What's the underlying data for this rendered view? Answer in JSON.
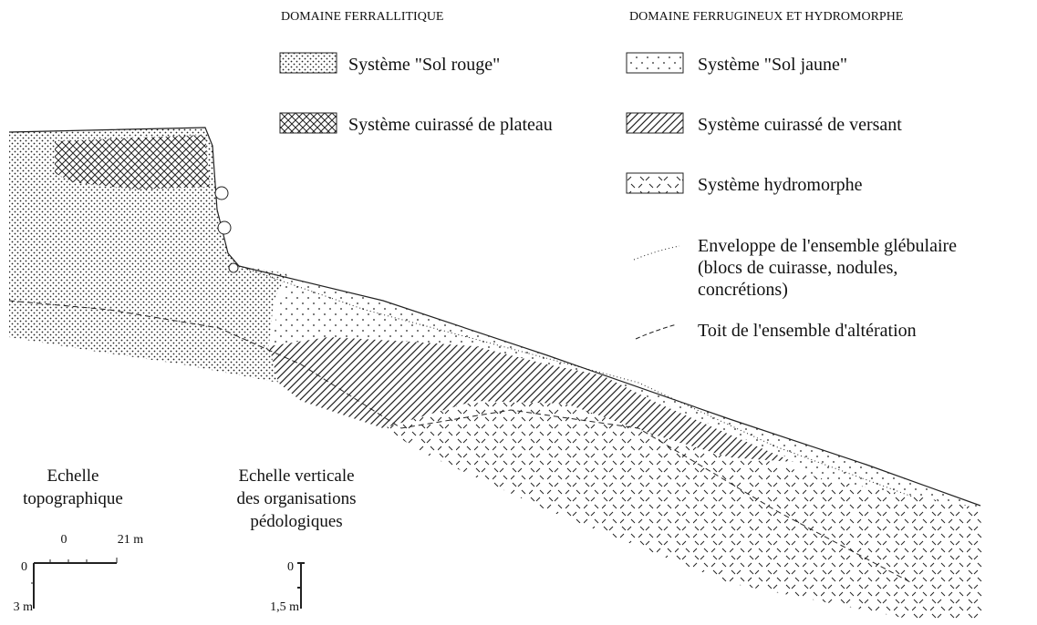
{
  "legend_groups": [
    {
      "title": "DOMAINE FERRALLITIQUE",
      "items": [
        "Système \"Sol rouge\"",
        "Système cuirassé de plateau"
      ]
    },
    {
      "title": "DOMAINE FERRUGINEUX ET HYDROMORPHE",
      "items": [
        "Système \"Sol jaune\"",
        "Système cuirassé de versant",
        "Système hydromorphe"
      ]
    }
  ],
  "line_legend": [
    {
      "lines": [
        "Enveloppe de l'ensemble glébulaire",
        "(blocs de cuirasse, nodules,",
        "concrétions)"
      ]
    },
    {
      "lines": [
        "Toit de l'ensemble d'altération"
      ]
    }
  ],
  "scales": [
    {
      "title_lines": [
        "Echelle",
        "topographique"
      ],
      "labels": [
        "0",
        "21 m",
        "0",
        "3 m"
      ]
    },
    {
      "title_lines": [
        "Echelle verticale",
        "des organisations",
        "pédologiques"
      ],
      "labels": [
        "0",
        "1,5 m"
      ]
    }
  ]
}
